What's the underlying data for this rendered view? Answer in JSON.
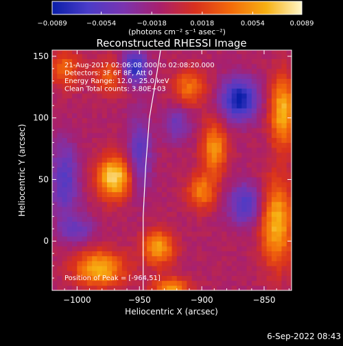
{
  "chart_data": {
    "type": "heatmap",
    "title": "Reconstructed RHESSI Image",
    "xlabel": "Heliocentric X (arcsec)",
    "ylabel": "Heliocentric Y (arcsec)",
    "xlim": [
      -1020,
      -828
    ],
    "ylim": [
      -40,
      155
    ],
    "x_ticks": [
      -1000,
      -950,
      -900,
      -850
    ],
    "x_tick_labels": [
      "−1000",
      "−950",
      "−900",
      "−850"
    ],
    "y_ticks": [
      0,
      50,
      100,
      150
    ],
    "y_tick_labels": [
      "0",
      "50",
      "100",
      "150"
    ],
    "colorbar": {
      "units": "(photons cm⁻² s⁻¹ asec⁻²)",
      "range": [
        -0.0089,
        0.0089
      ],
      "ticks": [
        -0.0089,
        -0.0054,
        -0.0018,
        0.0018,
        0.0054,
        0.0089
      ],
      "tick_labels": [
        "−0.0089",
        "−0.0054",
        "−0.0018",
        "0.0018",
        "0.0054",
        "0.0089"
      ],
      "colormap": [
        "#0a1ea8",
        "#4a3cc8",
        "#7a34b0",
        "#a8206e",
        "#d8301e",
        "#f36a0a",
        "#f7b012",
        "#fff6c8"
      ]
    },
    "annotations": [
      "21-Aug-2017 02:06:08.000 to 02:08:20.000",
      "Detectors: 3F 6F 8F, Att 0",
      "Energy Range: 12.0 - 25.0 keV",
      "Clean     Total counts: 3.80E+03"
    ],
    "peak_label": "Position of Peak = [-964,51]",
    "peak_position": [
      -964,
      51
    ],
    "footer": "6-Sep-2022 08:43",
    "sources": [
      {
        "x": -970,
        "y": 52,
        "peak": 1.0,
        "sx": 10,
        "sy": 12
      },
      {
        "x": -982,
        "y": -22,
        "peak": 0.85,
        "sx": 14,
        "sy": 10
      },
      {
        "x": -935,
        "y": -5,
        "peak": 0.75,
        "sx": 9,
        "sy": 10
      },
      {
        "x": -890,
        "y": 75,
        "peak": 0.7,
        "sx": 7,
        "sy": 15
      },
      {
        "x": -900,
        "y": 40,
        "peak": 0.6,
        "sx": 8,
        "sy": 10
      },
      {
        "x": -910,
        "y": 125,
        "peak": 0.55,
        "sx": 9,
        "sy": 10
      },
      {
        "x": -840,
        "y": 15,
        "peak": 0.85,
        "sx": 9,
        "sy": 24
      },
      {
        "x": -835,
        "y": 105,
        "peak": 0.85,
        "sx": 7,
        "sy": 20
      },
      {
        "x": -970,
        "y": 135,
        "peak": 0.5,
        "sx": 12,
        "sy": 10
      },
      {
        "x": -1010,
        "y": 140,
        "peak": 0.5,
        "sx": 8,
        "sy": 10
      },
      {
        "x": -925,
        "y": -38,
        "peak": 0.7,
        "sx": 10,
        "sy": 6
      },
      {
        "x": -955,
        "y": 140,
        "peak": -0.9,
        "sx": 8,
        "sy": 10
      },
      {
        "x": -870,
        "y": 115,
        "peak": -0.9,
        "sx": 10,
        "sy": 12
      },
      {
        "x": -1010,
        "y": 50,
        "peak": -0.55,
        "sx": 8,
        "sy": 22
      },
      {
        "x": -950,
        "y": 70,
        "peak": -0.5,
        "sx": 7,
        "sy": 22
      },
      {
        "x": -865,
        "y": 30,
        "peak": -0.6,
        "sx": 10,
        "sy": 12
      },
      {
        "x": -920,
        "y": 95,
        "peak": -0.4,
        "sx": 8,
        "sy": 10
      },
      {
        "x": -1000,
        "y": 10,
        "peak": -0.4,
        "sx": 10,
        "sy": 8
      }
    ],
    "limb_curve": [
      [
        -947,
        -40
      ],
      [
        -947,
        20
      ],
      [
        -945,
        60
      ],
      [
        -942,
        100
      ],
      [
        -937,
        130
      ],
      [
        -933,
        155
      ]
    ]
  }
}
